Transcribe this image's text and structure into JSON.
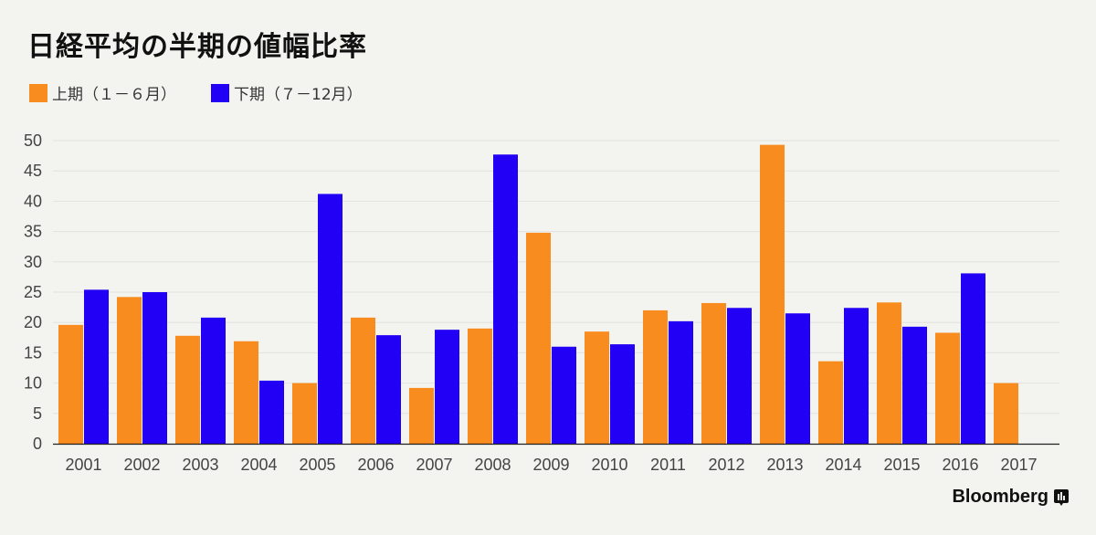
{
  "chart_data": {
    "type": "bar",
    "title": "日経平均の半期の値幅比率",
    "categories": [
      "2001",
      "2002",
      "2003",
      "2004",
      "2005",
      "2006",
      "2007",
      "2008",
      "2009",
      "2010",
      "2011",
      "2012",
      "2013",
      "2014",
      "2015",
      "2016",
      "2017"
    ],
    "series": [
      {
        "name": "上期（１－６月）",
        "color": "#f88c1e",
        "values": [
          19.6,
          24.2,
          17.8,
          16.9,
          10.0,
          20.8,
          9.2,
          19.0,
          34.8,
          18.5,
          22.0,
          23.2,
          49.3,
          13.6,
          23.3,
          18.3,
          10.0
        ]
      },
      {
        "name": "下期（７－12月）",
        "color": "#2200f5",
        "values": [
          25.4,
          25.0,
          20.8,
          10.4,
          41.2,
          17.9,
          18.8,
          47.7,
          16.0,
          16.4,
          20.2,
          22.4,
          21.5,
          22.4,
          19.3,
          28.1,
          null
        ]
      }
    ],
    "yticks": [
      "0",
      "5",
      "10",
      "15",
      "20",
      "25",
      "30",
      "35",
      "40",
      "45",
      "50"
    ],
    "ylim": [
      0,
      50
    ],
    "xlabel": "",
    "ylabel": "",
    "grid": true,
    "legend_position": "top-left"
  },
  "brand": {
    "name": "Bloomberg",
    "icon": "bloomberg-logo-icon"
  }
}
